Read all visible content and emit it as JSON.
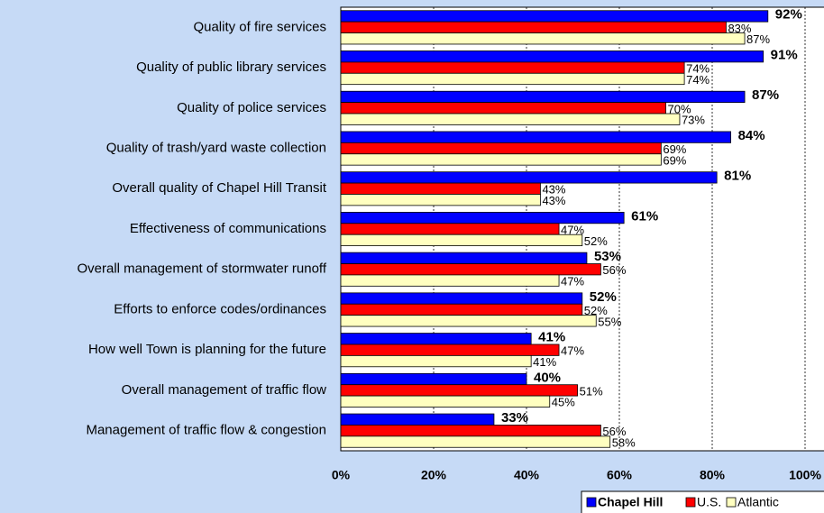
{
  "chart_data": {
    "type": "hbar",
    "categories": [
      "Quality of fire services",
      "Quality of public library services",
      "Quality of police services",
      "Quality of trash/yard waste collection",
      "Overall quality of Chapel Hill Transit",
      "Effectiveness of communications",
      "Overall management of stormwater runoff",
      "Efforts to enforce codes/ordinances",
      "How well Town is planning for the future",
      "Overall management of traffic flow",
      "Management of traffic flow & congestion"
    ],
    "series": [
      {
        "name": "Chapel Hill",
        "color": "#0000ff",
        "values": [
          92,
          91,
          87,
          84,
          81,
          61,
          53,
          52,
          41,
          40,
          33
        ],
        "value_labels": [
          "92%",
          "91%",
          "87%",
          "84%",
          "81%",
          "61%",
          "53%",
          "52%",
          "41%",
          "40%",
          "33%"
        ]
      },
      {
        "name": "U.S.",
        "color": "#ff0000",
        "values": [
          83,
          74,
          70,
          69,
          43,
          47,
          56,
          52,
          47,
          51,
          56
        ],
        "value_labels": [
          "83%",
          "74%",
          "70%",
          "69%",
          "43%",
          "47%",
          "56%",
          "52%",
          "47%",
          "51%",
          "56%"
        ]
      },
      {
        "name": "Atlantic",
        "color": "#ffffc0",
        "values": [
          87,
          74,
          73,
          69,
          43,
          52,
          47,
          55,
          41,
          45,
          58
        ],
        "value_labels": [
          "87%",
          "74%",
          "73%",
          "69%",
          "43%",
          "52%",
          "47%",
          "55%",
          "41%",
          "45%",
          "58%"
        ]
      }
    ],
    "xlim": [
      0,
      100
    ],
    "xticks": [
      {
        "value": 0,
        "label": "0%"
      },
      {
        "value": 20,
        "label": "20%"
      },
      {
        "value": 40,
        "label": "40%"
      },
      {
        "value": 60,
        "label": "60%"
      },
      {
        "value": 80,
        "label": "80%"
      },
      {
        "value": 100,
        "label": "100%"
      }
    ],
    "grid": true,
    "legend": "bottom-right"
  }
}
